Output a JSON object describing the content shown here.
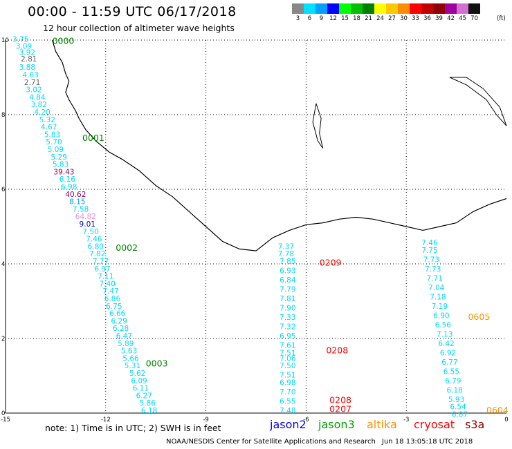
{
  "header": {
    "title": "00:00 - 11:59 UTC 06/17/2018",
    "subtitle": "12 hour collection of altimeter wave heights"
  },
  "colorbar": {
    "unit": "(ft)",
    "bins": [
      {
        "label": "3",
        "color": "#888888"
      },
      {
        "label": "6",
        "color": "#00e0ff"
      },
      {
        "label": "9",
        "color": "#00a0ff"
      },
      {
        "label": "12",
        "color": "#0000ff"
      },
      {
        "label": "15",
        "color": "#00ff00"
      },
      {
        "label": "18",
        "color": "#00c000"
      },
      {
        "label": "21",
        "color": "#008000"
      },
      {
        "label": "24",
        "color": "#ffff00"
      },
      {
        "label": "27",
        "color": "#ffc800"
      },
      {
        "label": "30",
        "color": "#ff8c00"
      },
      {
        "label": "33",
        "color": "#ff0000"
      },
      {
        "label": "36",
        "color": "#c00000"
      },
      {
        "label": "39",
        "color": "#900000"
      },
      {
        "label": "42",
        "color": "#a000a0"
      },
      {
        "label": "45",
        "color": "#d070d0"
      },
      {
        "label": "70",
        "color": "#111111"
      }
    ]
  },
  "axes": {
    "x_ticks": [
      "-15",
      "-12",
      "-9",
      "-6",
      "-3",
      "0"
    ],
    "y_ticks": [
      "0",
      "2",
      "4",
      "6",
      "8",
      "10"
    ]
  },
  "tracks": [
    {
      "satellite": "jason3",
      "time_labels": [
        {
          "text": "0000",
          "lon": -13.6,
          "lat": 9.9,
          "color": "#008000"
        },
        {
          "text": "0001",
          "lon": -12.7,
          "lat": 7.3,
          "color": "#008000"
        },
        {
          "text": "0002",
          "lon": -11.7,
          "lat": 4.35,
          "color": "#008000"
        },
        {
          "text": "0003",
          "lon": -10.8,
          "lat": 1.25,
          "color": "#008000"
        }
      ],
      "values": [
        {
          "v": "3.75",
          "lon": -14.55,
          "lat": 9.95,
          "color": "#00d8ff"
        },
        {
          "v": "3.09",
          "lon": -14.45,
          "lat": 9.77,
          "color": "#00d8ff"
        },
        {
          "v": "3.92",
          "lon": -14.35,
          "lat": 9.6,
          "color": "#00d8ff"
        },
        {
          "v": "2.81",
          "lon": -14.3,
          "lat": 9.43,
          "color": "#666666"
        },
        {
          "v": "3.88",
          "lon": -14.35,
          "lat": 9.2,
          "color": "#00d8ff"
        },
        {
          "v": "4.63",
          "lon": -14.25,
          "lat": 9.0,
          "color": "#00d8ff"
        },
        {
          "v": "2.71",
          "lon": -14.2,
          "lat": 8.8,
          "color": "#666666"
        },
        {
          "v": "3.02",
          "lon": -14.15,
          "lat": 8.6,
          "color": "#00d8ff"
        },
        {
          "v": "4.84",
          "lon": -14.05,
          "lat": 8.4,
          "color": "#00d8ff"
        },
        {
          "v": "3.82",
          "lon": -14.0,
          "lat": 8.2,
          "color": "#00d8ff"
        },
        {
          "v": "4.20",
          "lon": -13.9,
          "lat": 8.0,
          "color": "#00d8ff"
        },
        {
          "v": "5.32",
          "lon": -13.75,
          "lat": 7.8,
          "color": "#00d8ff"
        },
        {
          "v": "4.67",
          "lon": -13.7,
          "lat": 7.6,
          "color": "#00d8ff"
        },
        {
          "v": "5.83",
          "lon": -13.6,
          "lat": 7.4,
          "color": "#00d8ff"
        },
        {
          "v": "5.70",
          "lon": -13.55,
          "lat": 7.2,
          "color": "#00d8ff"
        },
        {
          "v": "5.09",
          "lon": -13.5,
          "lat": 7.0,
          "color": "#00d8ff"
        },
        {
          "v": "5.29",
          "lon": -13.4,
          "lat": 6.8,
          "color": "#00d8ff"
        },
        {
          "v": "5.83",
          "lon": -13.35,
          "lat": 6.6,
          "color": "#00d8ff"
        },
        {
          "v": "39.43",
          "lon": -13.25,
          "lat": 6.4,
          "color": "#900060"
        },
        {
          "v": "6.16",
          "lon": -13.15,
          "lat": 6.2,
          "color": "#00d8ff"
        },
        {
          "v": "6.98",
          "lon": -13.1,
          "lat": 6.0,
          "color": "#00d8ff"
        },
        {
          "v": "40.62",
          "lon": -12.9,
          "lat": 5.8,
          "color": "#900060"
        },
        {
          "v": "8.15",
          "lon": -12.85,
          "lat": 5.6,
          "color": "#00a0ff"
        },
        {
          "v": "7.58",
          "lon": -12.75,
          "lat": 5.4,
          "color": "#00d8ff"
        },
        {
          "v": "64.82",
          "lon": -12.6,
          "lat": 5.2,
          "color": "#e090e0"
        },
        {
          "v": "9.01",
          "lon": -12.55,
          "lat": 5.0,
          "color": "#0000d0"
        },
        {
          "v": "7.50",
          "lon": -12.45,
          "lat": 4.8,
          "color": "#00d8ff"
        },
        {
          "v": "7.46",
          "lon": -12.35,
          "lat": 4.6,
          "color": "#00d8ff"
        },
        {
          "v": "6.80",
          "lon": -12.3,
          "lat": 4.4,
          "color": "#00d8ff"
        },
        {
          "v": "7.82",
          "lon": -12.25,
          "lat": 4.2,
          "color": "#00d8ff"
        },
        {
          "v": "7.77",
          "lon": -12.15,
          "lat": 4.0,
          "color": "#00d8ff"
        },
        {
          "v": "6.97",
          "lon": -12.1,
          "lat": 3.8,
          "color": "#00d8ff"
        },
        {
          "v": "7.11",
          "lon": -12.0,
          "lat": 3.6,
          "color": "#00d8ff"
        },
        {
          "v": "7.40",
          "lon": -11.95,
          "lat": 3.4,
          "color": "#00d8ff"
        },
        {
          "v": "7.47",
          "lon": -11.85,
          "lat": 3.2,
          "color": "#00d8ff"
        },
        {
          "v": "6.86",
          "lon": -11.8,
          "lat": 3.0,
          "color": "#00d8ff"
        },
        {
          "v": "6.75",
          "lon": -11.75,
          "lat": 2.8,
          "color": "#00d8ff"
        },
        {
          "v": "6.66",
          "lon": -11.65,
          "lat": 2.6,
          "color": "#00d8ff"
        },
        {
          "v": "6.29",
          "lon": -11.6,
          "lat": 2.4,
          "color": "#00d8ff"
        },
        {
          "v": "6.28",
          "lon": -11.55,
          "lat": 2.2,
          "color": "#00d8ff"
        },
        {
          "v": "6.47",
          "lon": -11.45,
          "lat": 2.0,
          "color": "#00d8ff"
        },
        {
          "v": "5.89",
          "lon": -11.4,
          "lat": 1.8,
          "color": "#00d8ff"
        },
        {
          "v": "5.63",
          "lon": -11.3,
          "lat": 1.6,
          "color": "#00d8ff"
        },
        {
          "v": "5.66",
          "lon": -11.25,
          "lat": 1.4,
          "color": "#00d8ff"
        },
        {
          "v": "5.31",
          "lon": -11.2,
          "lat": 1.2,
          "color": "#00d8ff"
        },
        {
          "v": "5.62",
          "lon": -11.05,
          "lat": 1.0,
          "color": "#00d8ff"
        },
        {
          "v": "6.09",
          "lon": -11.0,
          "lat": 0.8,
          "color": "#00d8ff"
        },
        {
          "v": "6.11",
          "lon": -10.95,
          "lat": 0.6,
          "color": "#00d8ff"
        },
        {
          "v": "6.27",
          "lon": -10.85,
          "lat": 0.4,
          "color": "#00d8ff"
        },
        {
          "v": "5.86",
          "lon": -10.75,
          "lat": 0.2,
          "color": "#00d8ff"
        },
        {
          "v": "6.18",
          "lon": -10.7,
          "lat": 0.0,
          "color": "#00d8ff"
        }
      ]
    },
    {
      "satellite": "cryosat",
      "time_labels": [
        {
          "text": "0209",
          "lon": -5.6,
          "lat": 3.95,
          "color": "#ff0000"
        },
        {
          "text": "0208",
          "lon": -5.4,
          "lat": 1.6,
          "color": "#ff0000"
        },
        {
          "text": "0208",
          "lon": -5.3,
          "lat": 0.27,
          "color": "#ff0000"
        },
        {
          "text": "0207",
          "lon": -5.3,
          "lat": 0.03,
          "color": "#ff0000"
        }
      ],
      "values": [
        {
          "v": "7.37",
          "lon": -6.6,
          "lat": 4.4,
          "color": "#00d8ff"
        },
        {
          "v": "7.78",
          "lon": -6.6,
          "lat": 4.2,
          "color": "#00d8ff"
        },
        {
          "v": "7.85",
          "lon": -6.55,
          "lat": 4.0,
          "color": "#00d8ff"
        },
        {
          "v": "6.93",
          "lon": -6.55,
          "lat": 3.75,
          "color": "#00d8ff"
        },
        {
          "v": "6.84",
          "lon": -6.55,
          "lat": 3.5,
          "color": "#00d8ff"
        },
        {
          "v": "7.79",
          "lon": -6.55,
          "lat": 3.25,
          "color": "#00d8ff"
        },
        {
          "v": "7.81",
          "lon": -6.55,
          "lat": 3.0,
          "color": "#00d8ff"
        },
        {
          "v": "7.90",
          "lon": -6.55,
          "lat": 2.75,
          "color": "#00d8ff"
        },
        {
          "v": "7.33",
          "lon": -6.55,
          "lat": 2.5,
          "color": "#00d8ff"
        },
        {
          "v": "7.32",
          "lon": -6.55,
          "lat": 2.25,
          "color": "#00d8ff"
        },
        {
          "v": "6.95",
          "lon": -6.55,
          "lat": 2.0,
          "color": "#00d8ff"
        },
        {
          "v": "7.61",
          "lon": -6.55,
          "lat": 1.75,
          "color": "#00d8ff"
        },
        {
          "v": "7.51",
          "lon": -6.55,
          "lat": 1.55,
          "color": "#00d8ff"
        },
        {
          "v": "7.06",
          "lon": -6.55,
          "lat": 1.4,
          "color": "#00d8ff"
        },
        {
          "v": "7.50",
          "lon": -6.55,
          "lat": 1.2,
          "color": "#00d8ff"
        },
        {
          "v": "7.51",
          "lon": -6.55,
          "lat": 0.95,
          "color": "#00d8ff"
        },
        {
          "v": "6.98",
          "lon": -6.55,
          "lat": 0.75,
          "color": "#00d8ff"
        },
        {
          "v": "7.70",
          "lon": -6.55,
          "lat": 0.5,
          "color": "#00d8ff"
        },
        {
          "v": "6.55",
          "lon": -6.55,
          "lat": 0.25,
          "color": "#00d8ff"
        },
        {
          "v": "7.48",
          "lon": -6.55,
          "lat": 0.0,
          "color": "#00d8ff"
        }
      ]
    },
    {
      "satellite": "altika",
      "time_labels": [
        {
          "text": "0605",
          "lon": -1.15,
          "lat": 2.5,
          "color": "#ff9000"
        },
        {
          "text": "0604",
          "lon": -0.6,
          "lat": 0.0,
          "color": "#ff9000"
        }
      ],
      "values": [
        {
          "v": "7.46",
          "lon": -2.3,
          "lat": 4.5,
          "color": "#00d8ff"
        },
        {
          "v": "7.75",
          "lon": -2.3,
          "lat": 4.3,
          "color": "#00d8ff"
        },
        {
          "v": "7.73",
          "lon": -2.25,
          "lat": 4.05,
          "color": "#00d8ff"
        },
        {
          "v": "7.73",
          "lon": -2.2,
          "lat": 3.8,
          "color": "#00d8ff"
        },
        {
          "v": "7.71",
          "lon": -2.15,
          "lat": 3.55,
          "color": "#00d8ff"
        },
        {
          "v": "7.04",
          "lon": -2.1,
          "lat": 3.3,
          "color": "#00d8ff"
        },
        {
          "v": "7.18",
          "lon": -2.05,
          "lat": 3.05,
          "color": "#00d8ff"
        },
        {
          "v": "7.19",
          "lon": -2.0,
          "lat": 2.8,
          "color": "#00d8ff"
        },
        {
          "v": "6.90",
          "lon": -1.95,
          "lat": 2.55,
          "color": "#00d8ff"
        },
        {
          "v": "6.56",
          "lon": -1.9,
          "lat": 2.3,
          "color": "#00d8ff"
        },
        {
          "v": "7.13",
          "lon": -1.85,
          "lat": 2.05,
          "color": "#00d8ff"
        },
        {
          "v": "6.42",
          "lon": -1.8,
          "lat": 1.8,
          "color": "#00d8ff"
        },
        {
          "v": "6.92",
          "lon": -1.75,
          "lat": 1.55,
          "color": "#00d8ff"
        },
        {
          "v": "6.77",
          "lon": -1.7,
          "lat": 1.3,
          "color": "#00d8ff"
        },
        {
          "v": "6.55",
          "lon": -1.65,
          "lat": 1.05,
          "color": "#00d8ff"
        },
        {
          "v": "6.79",
          "lon": -1.6,
          "lat": 0.8,
          "color": "#00d8ff"
        },
        {
          "v": "6.18",
          "lon": -1.55,
          "lat": 0.55,
          "color": "#00d8ff"
        },
        {
          "v": "5.93",
          "lon": -1.5,
          "lat": 0.3,
          "color": "#00d8ff"
        },
        {
          "v": "6.54",
          "lon": -1.45,
          "lat": 0.1,
          "color": "#00d8ff"
        },
        {
          "v": "6.87",
          "lon": -1.4,
          "lat": -0.1,
          "color": "#00d8ff"
        }
      ]
    }
  ],
  "footer": {
    "note": "note: 1) Time is in UTC; 2) SWH is in feet",
    "satellites": [
      {
        "name": "jason2",
        "color": "#0000ff"
      },
      {
        "name": "jason3",
        "color": "#00a000"
      },
      {
        "name": "altika",
        "color": "#ff9000"
      },
      {
        "name": "cryosat",
        "color": "#ff0000"
      },
      {
        "name": "s3a",
        "color": "#900000"
      }
    ],
    "credit": "NOAA/NESDIS Center for Satellite Applications and Research",
    "timestamp": "Jun 18 13:05:18 UTC 2018"
  }
}
